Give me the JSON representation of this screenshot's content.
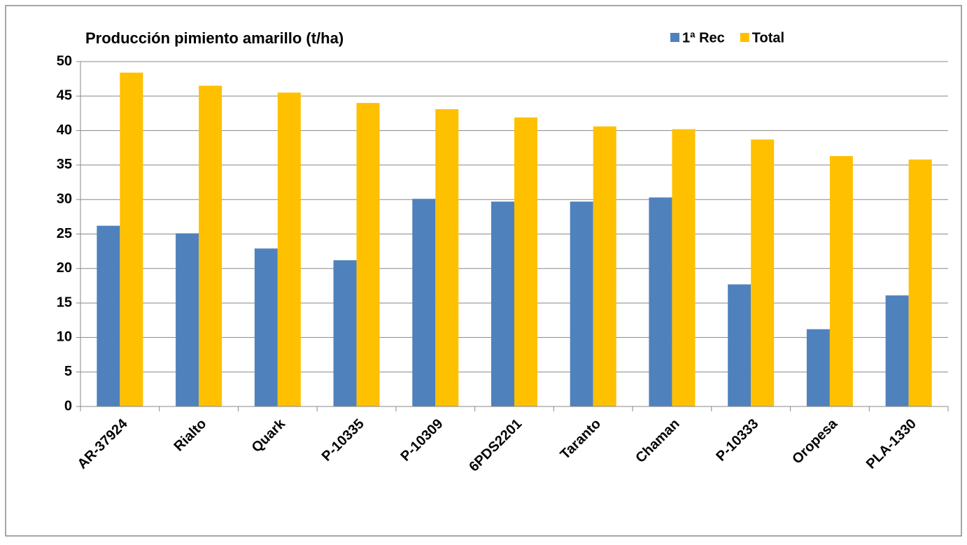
{
  "chart_data": {
    "type": "bar",
    "title": "Producción pimiento amarillo  (t/ha)",
    "categories": [
      "AR-37924",
      "Rialto",
      "Quark",
      "P-10335",
      "P-10309",
      "6PDS2201",
      "Taranto",
      "Chaman",
      "P-10333",
      "Oropesa",
      "PLA-1330"
    ],
    "series": [
      {
        "name": "1ª Rec",
        "color": "#4f81bd",
        "values": [
          26.2,
          25.1,
          22.9,
          21.2,
          30.1,
          29.7,
          29.7,
          30.3,
          17.7,
          11.2,
          16.1
        ]
      },
      {
        "name": "Total",
        "color": "#ffc000",
        "values": [
          48.4,
          46.5,
          45.5,
          44.0,
          43.1,
          41.9,
          40.6,
          40.2,
          38.7,
          36.3,
          35.8
        ]
      }
    ],
    "ylim": [
      0,
      50
    ],
    "yticks": [
      0,
      5,
      10,
      15,
      20,
      25,
      30,
      35,
      40,
      45,
      50
    ],
    "grid": true,
    "legend": "top-right"
  }
}
